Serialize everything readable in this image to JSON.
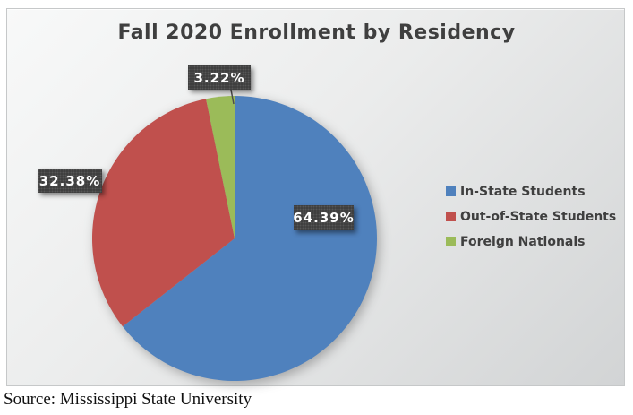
{
  "chart_data": {
    "type": "pie",
    "title": "Fall 2020 Enrollment by Residency",
    "series": [
      {
        "label": "In-State Students",
        "value": 64.39,
        "data_label": "64.39%",
        "color": "#4F81BD"
      },
      {
        "label": "Out-of-State Students",
        "value": 32.38,
        "data_label": "32.38%",
        "color": "#C0504D"
      },
      {
        "label": "Foreign Nationals",
        "value": 3.22,
        "data_label": "3.22%",
        "color": "#9BBB59"
      }
    ],
    "start_angle_deg": 0,
    "direction": "clockwise",
    "legend_position": "right",
    "data_labels_shown": true
  },
  "source_note": "Source: Mississippi State University",
  "colors": {
    "title_text": "#3f3f3f",
    "legend_text": "#3f3f3f",
    "callout_background": "#3a3a3a",
    "callout_text": "#ffffff",
    "leader_line": "#4d4d4d",
    "frame_border": "#c6c8c9"
  }
}
